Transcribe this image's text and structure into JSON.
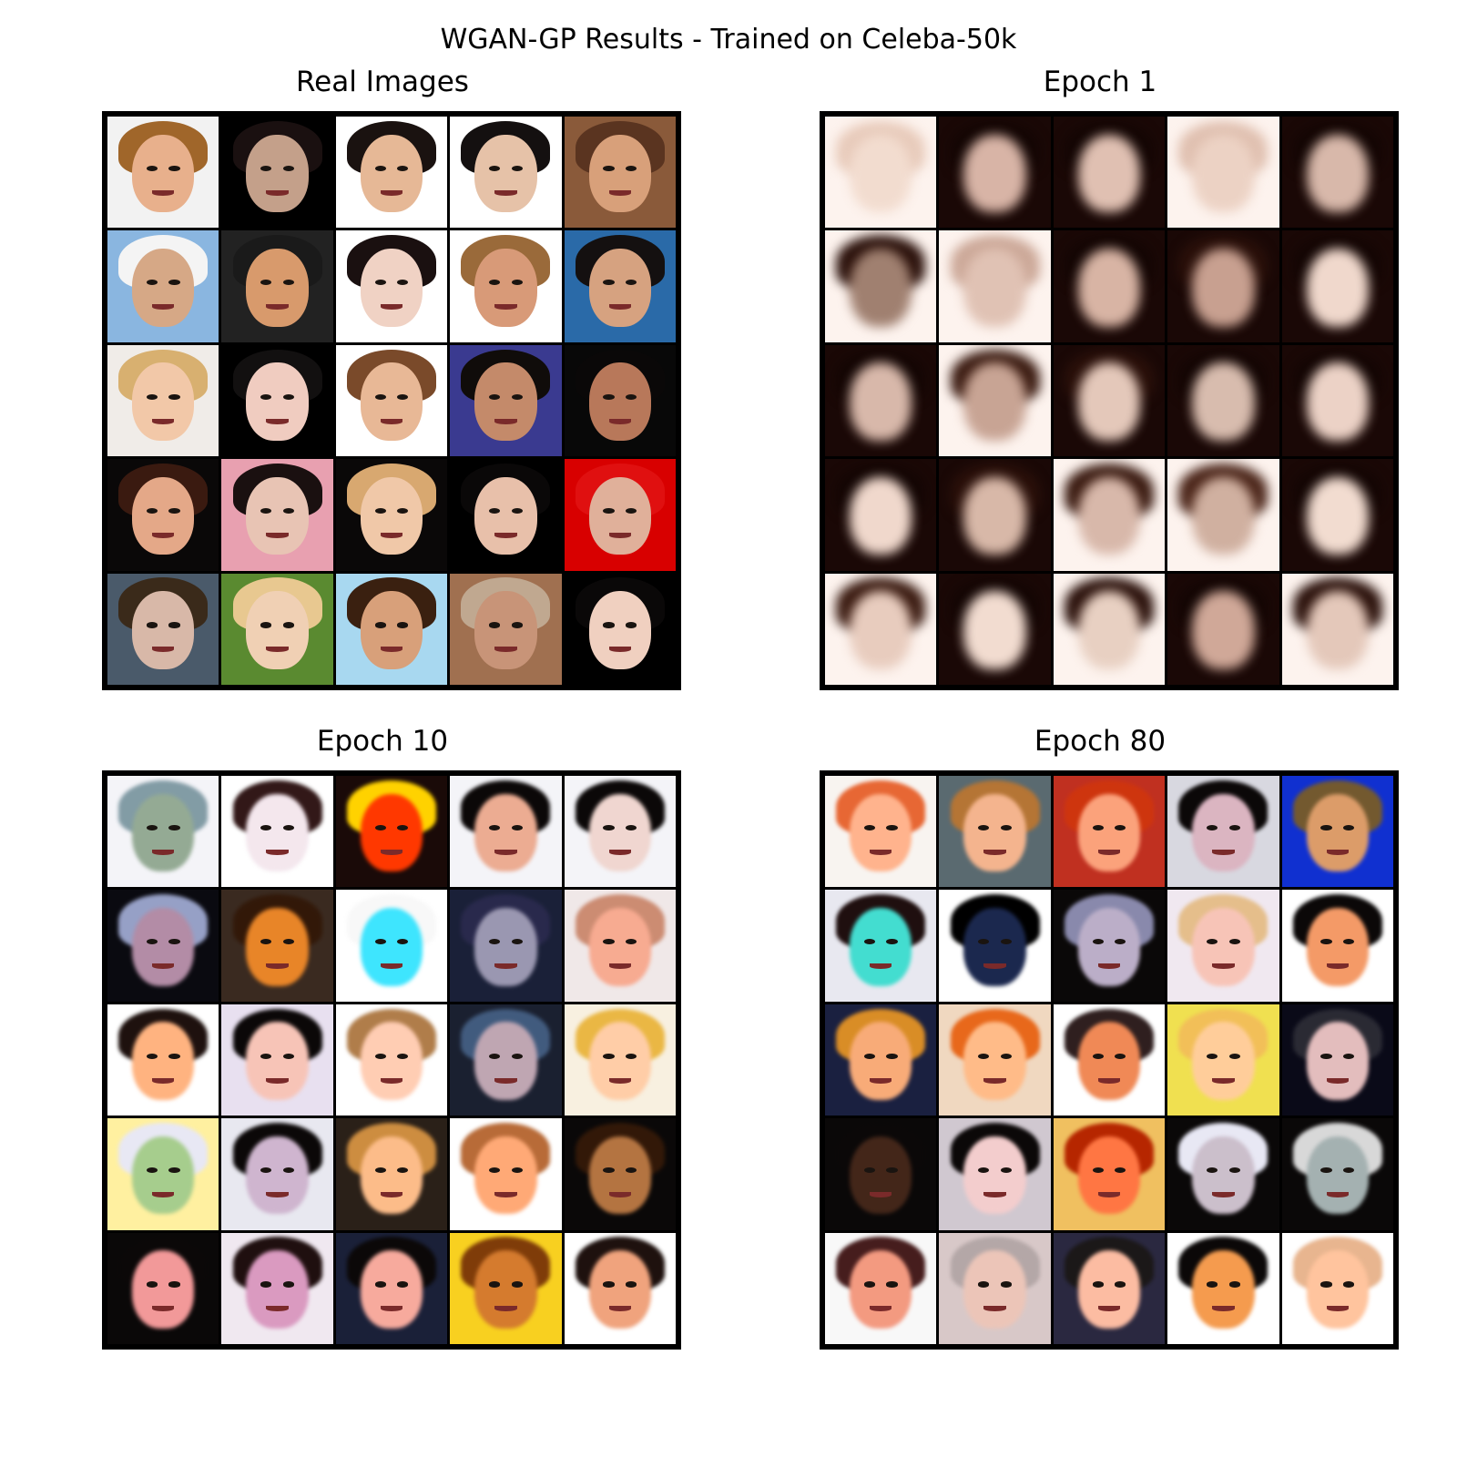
{
  "figure": {
    "title": "WGAN-GP Results - Trained on Celeba-50k"
  },
  "panels": [
    {
      "title": "Real Images",
      "style": "real",
      "rows": 5,
      "cols": 5,
      "tiles": [
        [
          "#f2f2f2",
          "#e8b08c",
          "#a0662a"
        ],
        [
          "#000000",
          "#c4a08a",
          "#1a1010"
        ],
        [
          "#ffffff",
          "#e6b896",
          "#1a1210"
        ],
        [
          "#ffffff",
          "#e6c2a8",
          "#141010"
        ],
        [
          "#8a5a3a",
          "#d8a07a",
          "#5a3420"
        ],
        [
          "#8ab6e0",
          "#d6a886",
          "#f4f4f4"
        ],
        [
          "#222222",
          "#d89a6c",
          "#1a1a1a"
        ],
        [
          "#ffffff",
          "#f0d2c4",
          "#1a1010"
        ],
        [
          "#ffffff",
          "#d89a78",
          "#9a6a3a"
        ],
        [
          "#2a6aa8",
          "#d6a280",
          "#141010"
        ],
        [
          "#f0ece8",
          "#f2c8a8",
          "#d8b070"
        ],
        [
          "#000000",
          "#f0ccc0",
          "#121010"
        ],
        [
          "#ffffff",
          "#e8b896",
          "#7a4a2a"
        ],
        [
          "#3a3a90",
          "#c48a6a",
          "#100c0a"
        ],
        [
          "#080808",
          "#b8785a",
          "#0a0808"
        ],
        [
          "#0a0808",
          "#e4a888",
          "#3a1a10"
        ],
        [
          "#e8a0b0",
          "#e8c4b4",
          "#1a1010"
        ],
        [
          "#0a0808",
          "#f0c8a8",
          "#d8a870"
        ],
        [
          "#000000",
          "#e8c0aa",
          "#0a0808"
        ],
        [
          "#d80000",
          "#e0b09a",
          "#e01010"
        ],
        [
          "#4a5a6a",
          "#d8b8a8",
          "#3a2a1a"
        ],
        [
          "#5a8a30",
          "#f0d0b4",
          "#e8c890"
        ],
        [
          "#a8d8f0",
          "#d8a07a",
          "#3a2010"
        ],
        [
          "#a07050",
          "#c89478",
          "#c0a890"
        ],
        [
          "#000000",
          "#f0d0c0",
          "#0a0808"
        ]
      ]
    },
    {
      "title": "Epoch 1",
      "style": "blur",
      "rows": 5,
      "cols": 5,
      "tiles": [
        [
          "#fdf3ee",
          "#f2dccf",
          "#e8cbbb"
        ],
        [
          "#1a0806",
          "#d8b4a6",
          "#140604"
        ],
        [
          "#1a0806",
          "#e0c0b2",
          "#140604"
        ],
        [
          "#fdf3ee",
          "#ecd2c4",
          "#e0c0b0"
        ],
        [
          "#1a0806",
          "#d8b8aa",
          "#140604"
        ],
        [
          "#fdf3ee",
          "#a08070",
          "#2a100a"
        ],
        [
          "#fdf3ee",
          "#e0c2b4",
          "#cca898"
        ],
        [
          "#1a0806",
          "#d8b4a4",
          "#140604"
        ],
        [
          "#1a0806",
          "#c8a090",
          "#2a100a"
        ],
        [
          "#1a0806",
          "#f0d8cc",
          "#140604"
        ],
        [
          "#1a0806",
          "#d8b8aa",
          "#140604"
        ],
        [
          "#fdf3ee",
          "#c8a494",
          "#3a1a10"
        ],
        [
          "#1a0806",
          "#e4c8ba",
          "#2a100a"
        ],
        [
          "#1a0806",
          "#d8bcae",
          "#140604"
        ],
        [
          "#1a0806",
          "#ecd2c6",
          "#140604"
        ],
        [
          "#1a0806",
          "#f0d8cc",
          "#140604"
        ],
        [
          "#1a0806",
          "#d8b8a8",
          "#2a100a"
        ],
        [
          "#fdf3ee",
          "#d8b8aa",
          "#3a1a10"
        ],
        [
          "#fdf3ee",
          "#d0b0a0",
          "#4a2418"
        ],
        [
          "#1a0806",
          "#f2dcd0",
          "#140604"
        ],
        [
          "#fdf3ee",
          "#e8ccbe",
          "#3a1a10"
        ],
        [
          "#1a0806",
          "#f2dcd0",
          "#140604"
        ],
        [
          "#fdf3ee",
          "#e8d0c2",
          "#2a100a"
        ],
        [
          "#1a0806",
          "#d0a898",
          "#140604"
        ],
        [
          "#fdf3ee",
          "#e4c8ba",
          "#2a100a"
        ]
      ]
    },
    {
      "title": "Epoch 10",
      "style": "noisy",
      "rows": 5,
      "cols": 5,
      "tiles": [
        [
          "#f4f4f8",
          "#9aa89a",
          "#8a9aa0"
        ],
        [
          "#ffffff",
          "#f0e8ec",
          "#2a1a1a"
        ],
        [
          "#1a0a08",
          "#e84a10",
          "#ffd020"
        ],
        [
          "#f4f4f8",
          "#d8b0a0",
          "#0a0808"
        ],
        [
          "#f4f4f8",
          "#e8d8d4",
          "#0a0808"
        ],
        [
          "#0a0a10",
          "#a890a0",
          "#9aa0b8"
        ],
        [
          "#3a2a20",
          "#c88a50",
          "#2a1a10"
        ],
        [
          "#ffffff",
          "#70d8e8",
          "#f8f8f8"
        ],
        [
          "#1a2038",
          "#9a98a8",
          "#2a2a40"
        ],
        [
          "#f0e8e8",
          "#e0b0a0",
          "#b89080"
        ],
        [
          "#ffffff",
          "#e8b898",
          "#1a1210"
        ],
        [
          "#e8e0f0",
          "#e8c8c0",
          "#0a0808"
        ],
        [
          "#ffffff",
          "#f0d0c0",
          "#a08060"
        ],
        [
          "#1a2030",
          "#b8a8b0",
          "#4a5a70"
        ],
        [
          "#f8f0e0",
          "#f0d0b8",
          "#d8b870"
        ],
        [
          "#fff0a0",
          "#b0c8a0",
          "#e8e8f0"
        ],
        [
          "#e8e8f0",
          "#c8b8c8",
          "#0a0808"
        ],
        [
          "#2a2018",
          "#e8c0a0",
          "#b89060"
        ],
        [
          "#ffffff",
          "#f0b090",
          "#a07050"
        ],
        [
          "#0a0808",
          "#a07858",
          "#2a1a10"
        ],
        [
          "#0a0808",
          "#d8a0a0",
          "#0a0808"
        ],
        [
          "#f0e8f0",
          "#c8a0b8",
          "#1a1010"
        ],
        [
          "#1a2038",
          "#e0b0a8",
          "#0a0808"
        ],
        [
          "#f8d020",
          "#b88050",
          "#6a4020"
        ],
        [
          "#ffffff",
          "#d8a890",
          "#1a1210"
        ]
      ]
    },
    {
      "title": "Epoch 80",
      "style": "noisy",
      "rows": 5,
      "cols": 5,
      "tiles": [
        [
          "#f8f4f0",
          "#e8b8a0",
          "#c07050"
        ],
        [
          "#5a6a70",
          "#e0b8a0",
          "#a07850"
        ],
        [
          "#c03020",
          "#e0a890",
          "#a04028"
        ],
        [
          "#d8d8e0",
          "#d0b8c0",
          "#0a0808"
        ],
        [
          "#1030d0",
          "#c8a080",
          "#6a5a40"
        ],
        [
          "#e8e8f0",
          "#70d0c8",
          "#1a1010"
        ],
        [
          "#ffffff",
          "#202840",
          "#000000"
        ],
        [
          "#0a0808",
          "#b8b0c0",
          "#8a8aa0"
        ],
        [
          "#f0e8f0",
          "#e8c8c0",
          "#d8c0a0"
        ],
        [
          "#ffffff",
          "#d8a080",
          "#0a0808"
        ],
        [
          "#1a2040",
          "#e0b090",
          "#c09050"
        ],
        [
          "#f0d8c0",
          "#f0c0a0",
          "#c07040"
        ],
        [
          "#ffffff",
          "#d09070",
          "#2a2020"
        ],
        [
          "#f0e050",
          "#f0d0b0",
          "#e0c080"
        ],
        [
          "#0a0a18",
          "#d8c0c0",
          "#2a2a30"
        ],
        [
          "#0a0808",
          "#3a2820",
          "#0a0808"
        ],
        [
          "#d0c8d0",
          "#e8d0d0",
          "#0a0808"
        ],
        [
          "#f0c060",
          "#d88060",
          "#8a3010"
        ],
        [
          "#0a0808",
          "#c8c0c8",
          "#e8e8f0"
        ],
        [
          "#0a0808",
          "#a8b0b0",
          "#d8d8d8"
        ],
        [
          "#f8f8f8",
          "#d8a090",
          "#3a2020"
        ],
        [
          "#d8c8c8",
          "#e0c8c0",
          "#b0a8a8"
        ],
        [
          "#2a2840",
          "#e8c0b0",
          "#1a1818"
        ],
        [
          "#ffffff",
          "#d8a070",
          "#0a0808"
        ],
        [
          "#ffffff",
          "#f0c8b0",
          "#d8b8a0"
        ]
      ]
    }
  ]
}
